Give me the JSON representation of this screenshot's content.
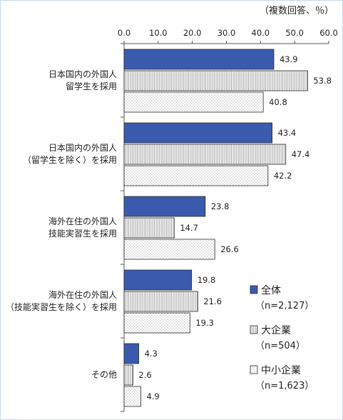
{
  "chart_data": {
    "type": "bar",
    "orientation": "horizontal",
    "unit_note": "（複数回答、％）",
    "xlim": [
      0,
      60
    ],
    "x_ticks": [
      "0.0",
      "10.0",
      "20.0",
      "30.0",
      "40.0",
      "50.0",
      "60.0"
    ],
    "categories": [
      [
        "日本国内の外国人",
        "留学生を採用"
      ],
      [
        "日本国内の外国人",
        "（留学生を除く）を採用"
      ],
      [
        "海外在住の外国人",
        "技能実習生を採用"
      ],
      [
        "海外在住の外国人",
        "（技能実習生を除く）を採用"
      ],
      [
        "その他"
      ]
    ],
    "series": [
      {
        "name": "全体",
        "count": "（n=2,127）",
        "color": "#3a5aad",
        "pattern": "solid",
        "values": [
          43.9,
          43.4,
          23.8,
          19.8,
          4.3
        ]
      },
      {
        "name": "大企業",
        "count": "（n=504）",
        "color": "#f0f0f0",
        "pattern": "vertical-lines",
        "values": [
          53.8,
          47.4,
          14.7,
          21.6,
          2.6
        ]
      },
      {
        "name": "中小企業",
        "count": "（n=1,623）",
        "color": "#ffffff",
        "pattern": "dots",
        "values": [
          40.8,
          42.2,
          26.6,
          19.3,
          4.9
        ]
      }
    ],
    "grid": false,
    "legend_position": "right-bottom"
  }
}
